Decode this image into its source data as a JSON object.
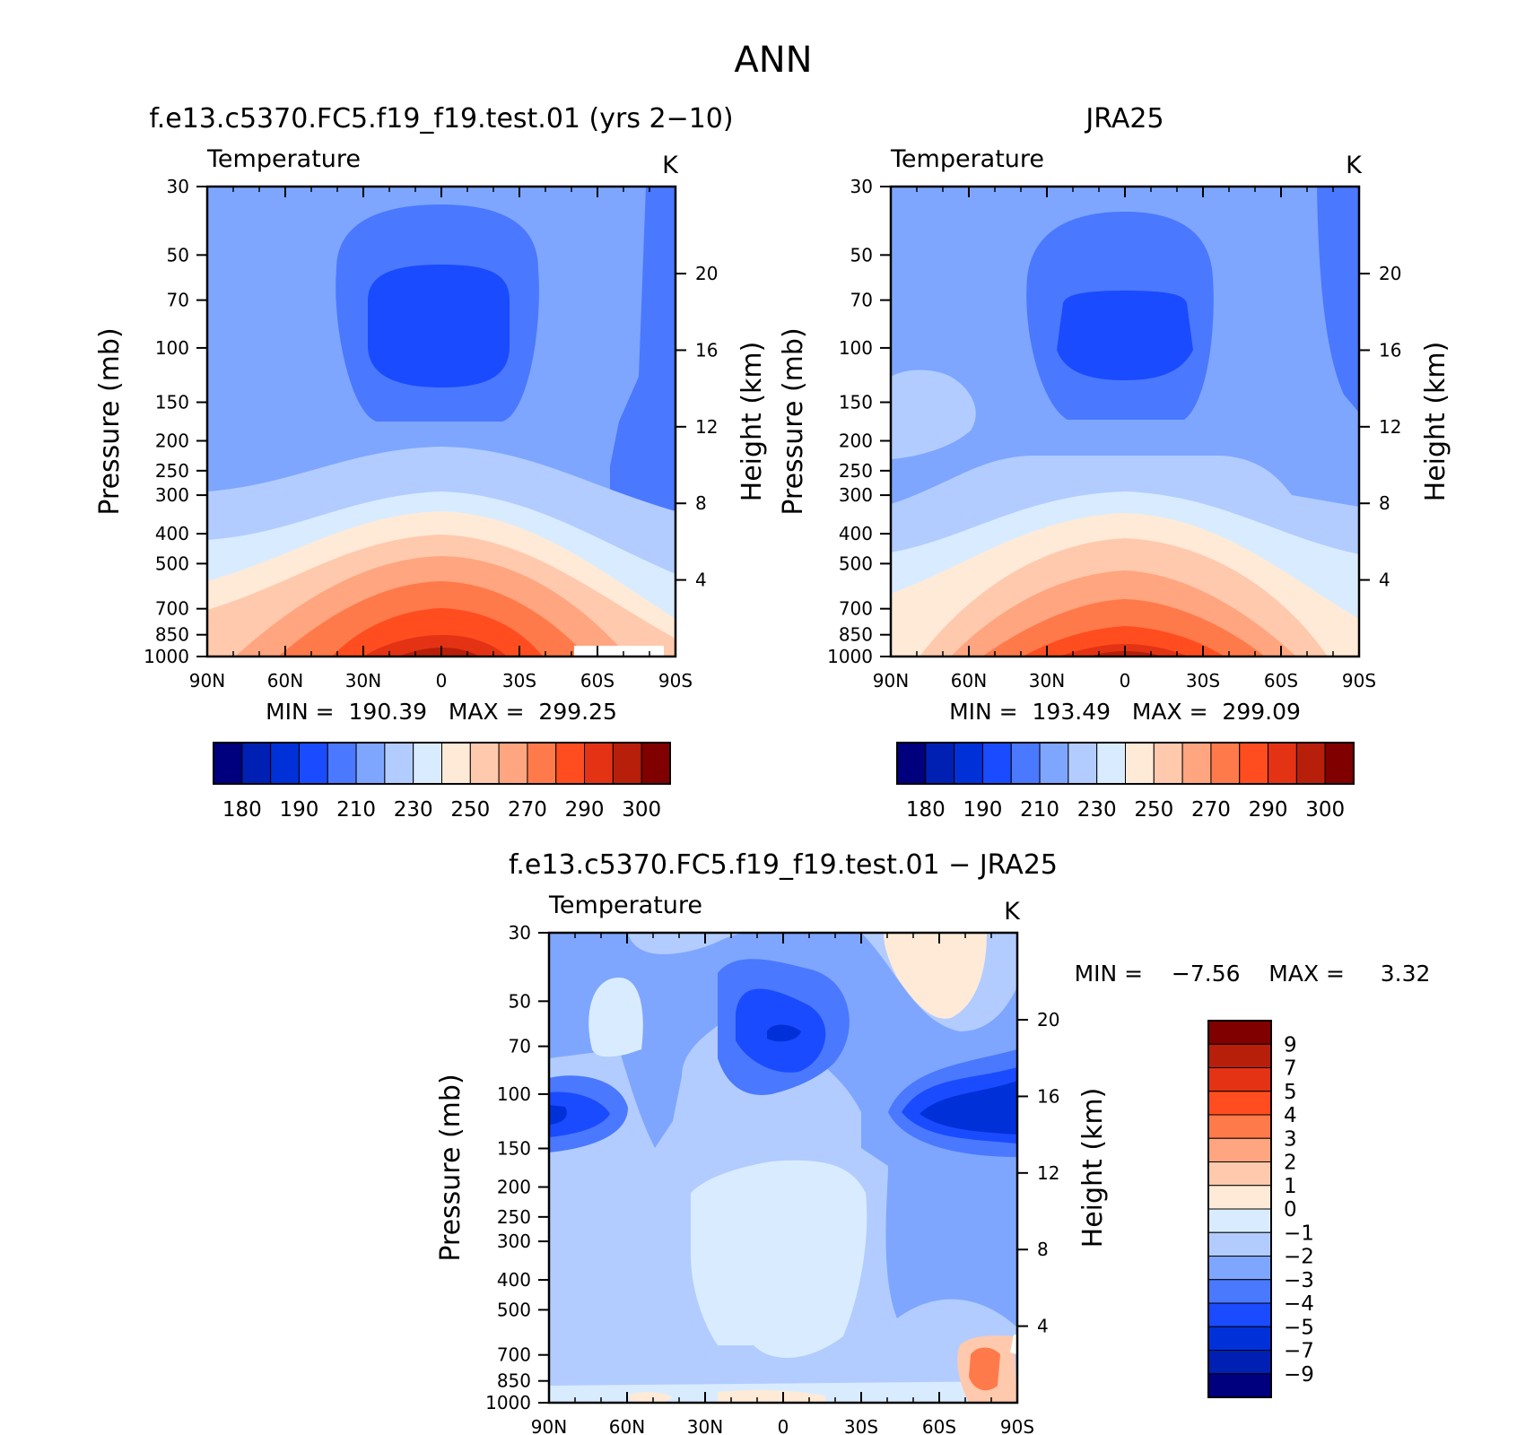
{
  "figure": {
    "title": "ANN"
  },
  "chart_data": [
    {
      "type": "heatmap",
      "panel_title": "f.e13.c5370.FC5.f19_f19.test.01 (yrs 2−10)",
      "variable": "Temperature",
      "units": "K",
      "xlabel": "",
      "ylabel": "Pressure (mb)",
      "ylabel_right": "Height (km)",
      "x_ticks": [
        "90N",
        "60N",
        "30N",
        "0",
        "30S",
        "60S",
        "90S"
      ],
      "x_values": [
        90,
        60,
        30,
        0,
        -30,
        -60,
        -90
      ],
      "y_ticks": [
        30,
        50,
        70,
        100,
        150,
        200,
        250,
        300,
        400,
        500,
        700,
        850,
        1000
      ],
      "y_right_ticks": [
        20,
        16,
        12,
        8,
        4
      ],
      "y_log_scale": true,
      "ylim": [
        1000,
        30
      ],
      "xlim": [
        90,
        -90
      ],
      "min_label": "MIN =  190.39   MAX =  299.25",
      "min": 190.39,
      "max": 299.25,
      "colorbar": {
        "labels": [
          "180",
          "190",
          "210",
          "230",
          "250",
          "270",
          "290",
          "300"
        ],
        "levels": [
          180,
          185,
          190,
          200,
          210,
          220,
          230,
          240,
          250,
          260,
          270,
          280,
          290,
          295,
          300
        ],
        "colors": [
          "#00007f",
          "#0020b4",
          "#0031d8",
          "#1a4bff",
          "#4a78ff",
          "#7ea6ff",
          "#b2ccff",
          "#d9ecff",
          "#ffead7",
          "#ffc9ad",
          "#ffa57f",
          "#ff7a4a",
          "#ff4d1f",
          "#e43314",
          "#b81f0a",
          "#800000"
        ]
      }
    },
    {
      "type": "heatmap",
      "panel_title": "JRA25",
      "variable": "Temperature",
      "units": "K",
      "xlabel": "",
      "ylabel": "Pressure (mb)",
      "ylabel_right": "Height (km)",
      "x_ticks": [
        "90N",
        "60N",
        "30N",
        "0",
        "30S",
        "60S",
        "90S"
      ],
      "x_values": [
        90,
        60,
        30,
        0,
        -30,
        -60,
        -90
      ],
      "y_ticks": [
        30,
        50,
        70,
        100,
        150,
        200,
        250,
        300,
        400,
        500,
        700,
        850,
        1000
      ],
      "y_right_ticks": [
        20,
        16,
        12,
        8,
        4
      ],
      "y_log_scale": true,
      "ylim": [
        1000,
        30
      ],
      "xlim": [
        90,
        -90
      ],
      "min_label": "MIN =  193.49   MAX =  299.09",
      "min": 193.49,
      "max": 299.09,
      "colorbar": {
        "labels": [
          "180",
          "190",
          "210",
          "230",
          "250",
          "270",
          "290",
          "300"
        ],
        "levels": [
          180,
          185,
          190,
          200,
          210,
          220,
          230,
          240,
          250,
          260,
          270,
          280,
          290,
          295,
          300
        ],
        "colors": [
          "#00007f",
          "#0020b4",
          "#0031d8",
          "#1a4bff",
          "#4a78ff",
          "#7ea6ff",
          "#b2ccff",
          "#d9ecff",
          "#ffead7",
          "#ffc9ad",
          "#ffa57f",
          "#ff7a4a",
          "#ff4d1f",
          "#e43314",
          "#b81f0a",
          "#800000"
        ]
      }
    },
    {
      "type": "heatmap",
      "panel_title": "f.e13.c5370.FC5.f19_f19.test.01 − JRA25",
      "variable": "Temperature",
      "units": "K",
      "xlabel": "",
      "ylabel": "Pressure (mb)",
      "ylabel_right": "Height (km)",
      "x_ticks": [
        "90N",
        "60N",
        "30N",
        "0",
        "30S",
        "60S",
        "90S"
      ],
      "x_values": [
        90,
        60,
        30,
        0,
        -30,
        -60,
        -90
      ],
      "y_ticks": [
        30,
        50,
        70,
        100,
        150,
        200,
        250,
        300,
        400,
        500,
        700,
        850,
        1000
      ],
      "y_right_ticks": [
        20,
        16,
        12,
        8,
        4
      ],
      "y_log_scale": true,
      "ylim": [
        1000,
        30
      ],
      "xlim": [
        90,
        -90
      ],
      "min_label": "MIN =    −7.56    MAX =     3.32",
      "min": -7.56,
      "max": 3.32,
      "colorbar": {
        "labels": [
          "9",
          "7",
          "5",
          "4",
          "3",
          "2",
          "1",
          "0",
          "−1",
          "−2",
          "−3",
          "−4",
          "−5",
          "−7",
          "−9"
        ],
        "levels": [
          9,
          7,
          5,
          4,
          3,
          2,
          1,
          0,
          -1,
          -2,
          -3,
          -4,
          -5,
          -7,
          -9
        ],
        "colors": [
          "#800000",
          "#b81f0a",
          "#e43314",
          "#ff4d1f",
          "#ff7a4a",
          "#ffa57f",
          "#ffc9ad",
          "#ffead7",
          "#d9ecff",
          "#b2ccff",
          "#7ea6ff",
          "#4a78ff",
          "#1a4bff",
          "#0031d8",
          "#0020b4",
          "#00007f"
        ]
      }
    }
  ]
}
